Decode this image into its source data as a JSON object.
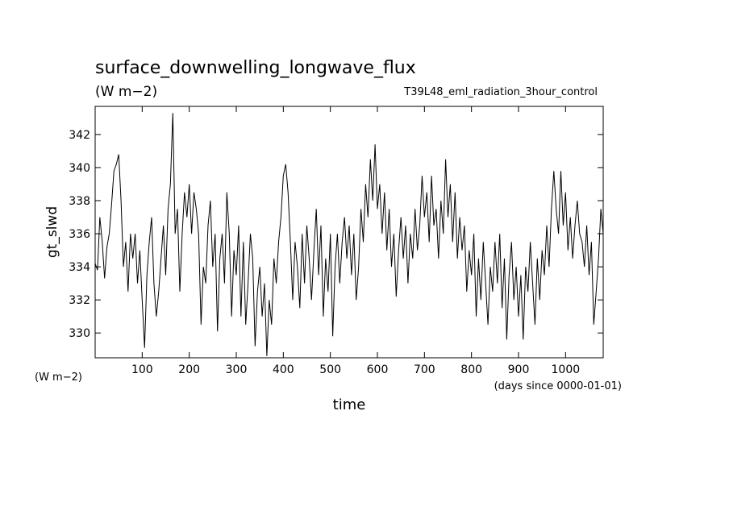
{
  "chart_data": {
    "type": "line",
    "title": "surface_downwelling_longwave_flux",
    "subtitle_units": "(W m−2)",
    "experiment": "T39L48_eml_radiation_3hour_control",
    "xlabel": "time",
    "x_units": "(days since 0000-01-01)",
    "ylabel": "gt_slwd",
    "y_units": "(W m−2)",
    "xlim": [
      0,
      1080
    ],
    "ylim": [
      328.5,
      343.7
    ],
    "x_ticks": [
      100,
      200,
      300,
      400,
      500,
      600,
      700,
      800,
      900,
      1000
    ],
    "y_ticks": [
      330,
      332,
      334,
      336,
      338,
      340,
      342
    ],
    "grid": false,
    "series": [
      {
        "values": [
          [
            0,
            334.2
          ],
          [
            5,
            333.8
          ],
          [
            10,
            337.0
          ],
          [
            15,
            335.5
          ],
          [
            20,
            333.3
          ],
          [
            25,
            335.2
          ],
          [
            30,
            336.0
          ],
          [
            35,
            337.8
          ],
          [
            40,
            339.8
          ],
          [
            45,
            340.2
          ],
          [
            50,
            340.8
          ],
          [
            55,
            338.0
          ],
          [
            60,
            334.0
          ],
          [
            65,
            335.5
          ],
          [
            70,
            332.5
          ],
          [
            75,
            336.0
          ],
          [
            80,
            334.5
          ],
          [
            85,
            336.0
          ],
          [
            90,
            333.0
          ],
          [
            95,
            335.0
          ],
          [
            100,
            332.0
          ],
          [
            105,
            329.1
          ],
          [
            110,
            333.5
          ],
          [
            115,
            335.5
          ],
          [
            120,
            337.0
          ],
          [
            125,
            333.0
          ],
          [
            130,
            331.0
          ],
          [
            135,
            332.5
          ],
          [
            140,
            334.5
          ],
          [
            145,
            336.5
          ],
          [
            150,
            333.5
          ],
          [
            155,
            337.5
          ],
          [
            160,
            339.0
          ],
          [
            165,
            343.3
          ],
          [
            170,
            336.0
          ],
          [
            175,
            337.5
          ],
          [
            180,
            332.5
          ],
          [
            185,
            336.0
          ],
          [
            190,
            338.5
          ],
          [
            195,
            337.0
          ],
          [
            200,
            339.0
          ],
          [
            205,
            336.0
          ],
          [
            210,
            338.5
          ],
          [
            215,
            337.5
          ],
          [
            220,
            336.0
          ],
          [
            225,
            330.5
          ],
          [
            230,
            334.0
          ],
          [
            235,
            333.0
          ],
          [
            240,
            336.5
          ],
          [
            245,
            338.0
          ],
          [
            250,
            334.0
          ],
          [
            255,
            336.0
          ],
          [
            260,
            330.1
          ],
          [
            265,
            334.5
          ],
          [
            270,
            336.0
          ],
          [
            275,
            333.0
          ],
          [
            280,
            338.5
          ],
          [
            285,
            336.0
          ],
          [
            290,
            331.0
          ],
          [
            295,
            335.0
          ],
          [
            300,
            333.5
          ],
          [
            305,
            336.5
          ],
          [
            310,
            331.0
          ],
          [
            315,
            335.5
          ],
          [
            320,
            330.5
          ],
          [
            325,
            333.0
          ],
          [
            330,
            336.0
          ],
          [
            335,
            334.5
          ],
          [
            340,
            329.2
          ],
          [
            345,
            332.5
          ],
          [
            350,
            334.0
          ],
          [
            355,
            331.0
          ],
          [
            360,
            333.0
          ],
          [
            365,
            328.6
          ],
          [
            370,
            332.0
          ],
          [
            375,
            330.5
          ],
          [
            380,
            334.5
          ],
          [
            385,
            333.0
          ],
          [
            390,
            335.5
          ],
          [
            395,
            337.0
          ],
          [
            400,
            339.5
          ],
          [
            405,
            340.2
          ],
          [
            410,
            338.5
          ],
          [
            415,
            335.5
          ],
          [
            420,
            332.0
          ],
          [
            425,
            335.5
          ],
          [
            430,
            334.0
          ],
          [
            435,
            331.5
          ],
          [
            440,
            336.0
          ],
          [
            445,
            333.0
          ],
          [
            450,
            336.5
          ],
          [
            455,
            334.5
          ],
          [
            460,
            332.0
          ],
          [
            465,
            335.0
          ],
          [
            470,
            337.5
          ],
          [
            475,
            333.5
          ],
          [
            480,
            336.5
          ],
          [
            485,
            331.0
          ],
          [
            490,
            334.5
          ],
          [
            495,
            332.5
          ],
          [
            500,
            336.0
          ],
          [
            505,
            329.8
          ],
          [
            510,
            334.0
          ],
          [
            515,
            336.0
          ],
          [
            520,
            333.0
          ],
          [
            525,
            335.5
          ],
          [
            530,
            337.0
          ],
          [
            535,
            334.5
          ],
          [
            540,
            336.5
          ],
          [
            545,
            333.5
          ],
          [
            550,
            336.0
          ],
          [
            555,
            332.0
          ],
          [
            560,
            334.0
          ],
          [
            565,
            337.5
          ],
          [
            570,
            335.5
          ],
          [
            575,
            339.0
          ],
          [
            580,
            337.0
          ],
          [
            585,
            340.5
          ],
          [
            590,
            338.0
          ],
          [
            595,
            341.4
          ],
          [
            600,
            337.5
          ],
          [
            605,
            339.0
          ],
          [
            610,
            336.0
          ],
          [
            615,
            338.5
          ],
          [
            620,
            335.0
          ],
          [
            625,
            337.5
          ],
          [
            630,
            334.0
          ],
          [
            635,
            336.0
          ],
          [
            640,
            332.2
          ],
          [
            645,
            335.0
          ],
          [
            650,
            337.0
          ],
          [
            655,
            334.5
          ],
          [
            660,
            336.5
          ],
          [
            665,
            333.0
          ],
          [
            670,
            336.0
          ],
          [
            675,
            334.5
          ],
          [
            680,
            337.5
          ],
          [
            685,
            335.0
          ],
          [
            690,
            336.5
          ],
          [
            695,
            339.5
          ],
          [
            700,
            337.0
          ],
          [
            705,
            338.5
          ],
          [
            710,
            335.5
          ],
          [
            715,
            339.5
          ],
          [
            720,
            336.5
          ],
          [
            725,
            337.5
          ],
          [
            730,
            334.5
          ],
          [
            735,
            338.0
          ],
          [
            740,
            336.0
          ],
          [
            745,
            340.5
          ],
          [
            750,
            337.0
          ],
          [
            755,
            339.0
          ],
          [
            760,
            335.5
          ],
          [
            765,
            338.5
          ],
          [
            770,
            334.5
          ],
          [
            775,
            337.0
          ],
          [
            780,
            335.0
          ],
          [
            785,
            336.5
          ],
          [
            790,
            332.5
          ],
          [
            795,
            335.0
          ],
          [
            800,
            333.5
          ],
          [
            805,
            336.0
          ],
          [
            810,
            331.0
          ],
          [
            815,
            334.5
          ],
          [
            820,
            332.0
          ],
          [
            825,
            335.5
          ],
          [
            830,
            333.0
          ],
          [
            835,
            330.5
          ],
          [
            840,
            334.0
          ],
          [
            845,
            332.5
          ],
          [
            850,
            335.5
          ],
          [
            855,
            333.0
          ],
          [
            860,
            336.0
          ],
          [
            865,
            331.5
          ],
          [
            870,
            334.5
          ],
          [
            875,
            329.6
          ],
          [
            880,
            333.5
          ],
          [
            885,
            335.5
          ],
          [
            890,
            332.0
          ],
          [
            895,
            334.0
          ],
          [
            900,
            331.0
          ],
          [
            905,
            333.5
          ],
          [
            910,
            329.6
          ],
          [
            915,
            334.0
          ],
          [
            920,
            332.5
          ],
          [
            925,
            335.5
          ],
          [
            930,
            333.0
          ],
          [
            935,
            330.5
          ],
          [
            940,
            334.5
          ],
          [
            945,
            332.0
          ],
          [
            950,
            335.0
          ],
          [
            955,
            333.5
          ],
          [
            960,
            336.5
          ],
          [
            965,
            334.0
          ],
          [
            970,
            337.5
          ],
          [
            975,
            339.8
          ],
          [
            980,
            337.5
          ],
          [
            985,
            336.0
          ],
          [
            990,
            339.8
          ],
          [
            995,
            336.5
          ],
          [
            1000,
            338.5
          ],
          [
            1005,
            335.0
          ],
          [
            1010,
            337.0
          ],
          [
            1015,
            334.5
          ],
          [
            1020,
            336.5
          ],
          [
            1025,
            338.0
          ],
          [
            1030,
            336.0
          ],
          [
            1035,
            335.5
          ],
          [
            1040,
            334.0
          ],
          [
            1045,
            336.5
          ],
          [
            1050,
            333.5
          ],
          [
            1055,
            335.5
          ],
          [
            1060,
            330.5
          ],
          [
            1065,
            332.5
          ],
          [
            1070,
            334.5
          ],
          [
            1075,
            337.5
          ],
          [
            1080,
            336.0
          ]
        ]
      }
    ]
  }
}
